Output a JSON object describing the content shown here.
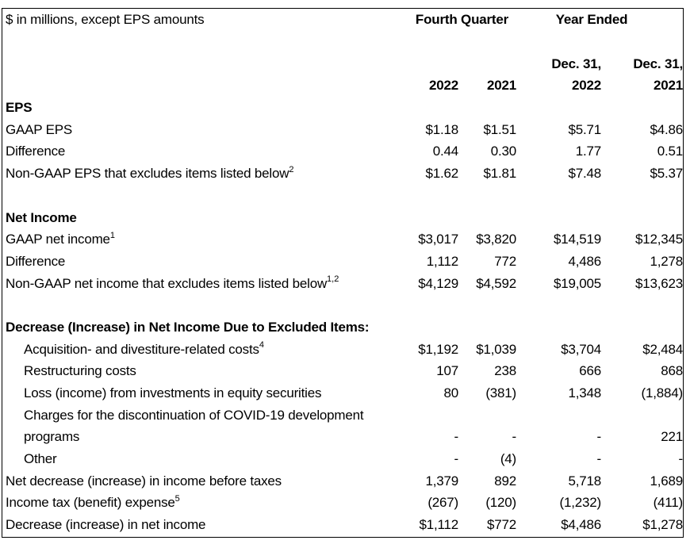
{
  "colors": {
    "text": "#000000",
    "background": "#ffffff",
    "border": "#000000"
  },
  "table": {
    "unit_note": "$ in millions, except EPS amounts",
    "col_groups": [
      {
        "label": "Fourth Quarter"
      },
      {
        "label": "Year Ended"
      }
    ],
    "date_headers": [
      "Dec. 31,",
      "Dec. 31,"
    ],
    "year_headers": [
      "2022",
      "2021",
      "2022",
      "2021"
    ],
    "column_keys": [
      "fq-2022",
      "fq-2021",
      "ye-2022",
      "ye-2021"
    ],
    "rows": [
      {
        "type": "section",
        "label": "EPS"
      },
      {
        "type": "data",
        "label": "GAAP EPS",
        "values": [
          "$1.18",
          "$1.51",
          "$5.71",
          "$4.86"
        ]
      },
      {
        "type": "data",
        "label": "Difference",
        "values": [
          "0.44",
          "0.30",
          "1.77",
          "0.51"
        ]
      },
      {
        "type": "data",
        "label": "Non-GAAP EPS that excludes items listed below",
        "sup": "2",
        "values": [
          "$1.62",
          "$1.81",
          "$7.48",
          "$5.37"
        ]
      },
      {
        "type": "blank"
      },
      {
        "type": "section",
        "label": "Net Income"
      },
      {
        "type": "data",
        "label": "GAAP net income",
        "sup": "1",
        "values": [
          "$3,017",
          "$3,820",
          "$14,519",
          "$12,345"
        ]
      },
      {
        "type": "data",
        "label": "Difference",
        "values": [
          "1,112",
          "772",
          "4,486",
          "1,278"
        ]
      },
      {
        "type": "data",
        "label": "Non-GAAP net income that excludes items listed below",
        "sup": "1,2",
        "values": [
          "$4,129",
          "$4,592",
          "$19,005",
          "$13,623"
        ]
      },
      {
        "type": "blank"
      },
      {
        "type": "section",
        "label": "Decrease (Increase) in Net Income Due to Excluded Items:"
      },
      {
        "type": "data",
        "indent": true,
        "label": "Acquisition- and divestiture-related costs",
        "sup": "4",
        "values": [
          "$1,192",
          "$1,039",
          "$3,704",
          "$2,484"
        ]
      },
      {
        "type": "data",
        "indent": true,
        "label": "Restructuring costs",
        "values": [
          "107",
          "238",
          "666",
          "868"
        ]
      },
      {
        "type": "data",
        "indent": true,
        "label": "Loss (income) from investments in equity securities",
        "values": [
          "80",
          "(381)",
          "1,348",
          "(1,884)"
        ]
      },
      {
        "type": "data",
        "indent": true,
        "label": "Charges for the discontinuation of COVID-19 development",
        "values": [
          "",
          "",
          "",
          ""
        ]
      },
      {
        "type": "data",
        "indent": true,
        "label": "programs",
        "values": [
          "-",
          "-",
          "-",
          "221"
        ]
      },
      {
        "type": "data",
        "indent": true,
        "label": "Other",
        "values": [
          "-",
          "(4)",
          "-",
          "-"
        ]
      },
      {
        "type": "data",
        "label": "Net decrease (increase) in income before taxes",
        "values": [
          "1,379",
          "892",
          "5,718",
          "1,689"
        ]
      },
      {
        "type": "data",
        "label": "Income tax (benefit) expense",
        "sup": "5",
        "values": [
          "(267)",
          "(120)",
          "(1,232)",
          "(411)"
        ]
      },
      {
        "type": "data",
        "label": "Decrease (increase) in net income",
        "values": [
          "$1,112",
          "$772",
          "$4,486",
          "$1,278"
        ]
      }
    ]
  }
}
